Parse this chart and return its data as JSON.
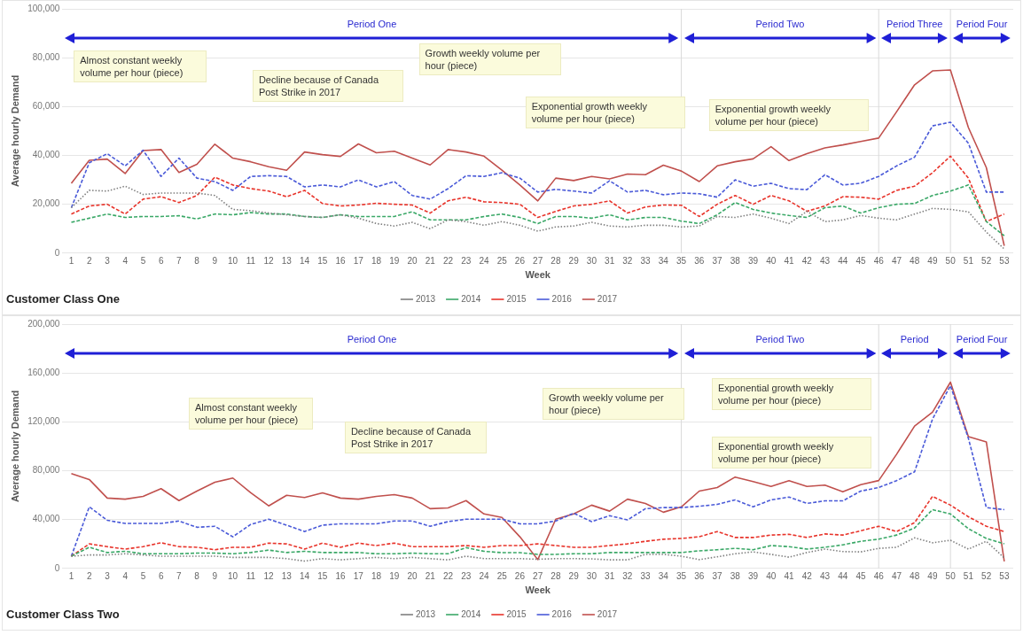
{
  "chart_data": [
    {
      "type": "line",
      "title": "Customer Class One",
      "xlabel": "Week",
      "ylabel": "Average hourly Demand",
      "x": [
        1,
        2,
        3,
        4,
        5,
        6,
        7,
        8,
        9,
        10,
        11,
        12,
        13,
        14,
        15,
        16,
        17,
        18,
        19,
        20,
        21,
        22,
        23,
        24,
        25,
        26,
        27,
        28,
        29,
        30,
        31,
        32,
        33,
        34,
        35,
        36,
        37,
        38,
        39,
        40,
        41,
        42,
        43,
        44,
        45,
        46,
        47,
        48,
        49,
        50,
        51,
        52,
        53
      ],
      "xlim": [
        0.5,
        53.5
      ],
      "xticks": [
        1,
        2,
        3,
        4,
        5,
        6,
        7,
        8,
        9,
        10,
        11,
        12,
        13,
        14,
        15,
        16,
        17,
        18,
        19,
        20,
        21,
        22,
        23,
        24,
        25,
        26,
        27,
        28,
        29,
        30,
        31,
        32,
        33,
        34,
        35,
        36,
        37,
        38,
        39,
        40,
        41,
        42,
        43,
        44,
        45,
        46,
        47,
        48,
        49,
        50,
        51,
        52,
        53
      ],
      "ylim": [
        0,
        100000
      ],
      "yticks": [
        {
          "value": 0,
          "label": "0"
        },
        {
          "value": 20000,
          "label": "20,000"
        },
        {
          "value": 40000,
          "label": "40,000"
        },
        {
          "value": 60000,
          "label": "60,000"
        },
        {
          "value": 80000,
          "label": "80,000"
        },
        {
          "value": 100000,
          "label": "100,000"
        }
      ],
      "grid": "y",
      "legend": "bottom",
      "marker": "none",
      "series": [
        {
          "name": "2013",
          "color": "#7f7f7f",
          "line_style": "dotted",
          "values": [
            18600,
            25700,
            25400,
            27400,
            24000,
            24600,
            24600,
            24600,
            23600,
            17900,
            17400,
            16400,
            15700,
            15000,
            14600,
            15700,
            14300,
            12100,
            11100,
            12600,
            10000,
            13600,
            12900,
            11400,
            12900,
            11400,
            9000,
            10700,
            11100,
            12600,
            11100,
            10700,
            11400,
            11400,
            10700,
            11100,
            15000,
            14600,
            16000,
            14300,
            12100,
            17100,
            12900,
            13600,
            15400,
            14300,
            13600,
            16000,
            18300,
            17900,
            16900,
            8600,
            1700
          ]
        },
        {
          "name": "2014",
          "color": "#3aa867",
          "line_style": "dashed",
          "values": [
            12600,
            14300,
            16000,
            14600,
            15000,
            15000,
            15300,
            14000,
            16000,
            15700,
            16600,
            16000,
            16000,
            15000,
            14600,
            15700,
            15000,
            15000,
            15000,
            16900,
            13600,
            13600,
            13600,
            15000,
            16000,
            14600,
            12100,
            15000,
            15000,
            14300,
            15700,
            13600,
            14600,
            14600,
            13100,
            12100,
            15700,
            20700,
            17900,
            16400,
            15400,
            14600,
            18600,
            19300,
            16400,
            18600,
            20000,
            20300,
            23600,
            25400,
            27900,
            12900,
            7100
          ]
        },
        {
          "name": "2015",
          "color": "#e8342b",
          "line_style": "dashed",
          "values": [
            16000,
            19300,
            20000,
            16000,
            22100,
            23100,
            20700,
            23600,
            31100,
            27900,
            26400,
            25400,
            23100,
            25700,
            20300,
            19300,
            19700,
            20400,
            20000,
            19700,
            16400,
            21400,
            22900,
            21000,
            20700,
            20000,
            14600,
            17100,
            19300,
            20000,
            21400,
            16400,
            18900,
            19700,
            19600,
            15000,
            20000,
            23600,
            20000,
            23600,
            21400,
            17100,
            19300,
            23100,
            22900,
            22100,
            25700,
            27400,
            32900,
            39700,
            30700,
            12900,
            16000
          ]
        },
        {
          "name": "2016",
          "color": "#4a5ad8",
          "line_style": "dashed",
          "values": [
            18600,
            37000,
            40700,
            35700,
            42100,
            31400,
            38900,
            30700,
            29300,
            25700,
            31400,
            31700,
            31400,
            27100,
            27900,
            27100,
            30000,
            27100,
            29300,
            23600,
            22100,
            26400,
            31700,
            31400,
            32900,
            30700,
            25000,
            26100,
            25400,
            24600,
            29600,
            25000,
            25700,
            23900,
            24600,
            24300,
            22900,
            30000,
            27400,
            28600,
            26400,
            26000,
            32100,
            27900,
            28600,
            31400,
            35700,
            39300,
            52100,
            53600,
            45000,
            25000,
            25000
          ]
        },
        {
          "name": "2017",
          "color": "#c0504d",
          "line_style": "solid",
          "values": [
            28600,
            38000,
            38500,
            32600,
            42000,
            42400,
            33000,
            36400,
            44600,
            38900,
            37400,
            35400,
            33900,
            41400,
            40300,
            39600,
            44700,
            41100,
            41700,
            38900,
            36100,
            42400,
            41400,
            39700,
            34000,
            27900,
            21400,
            30700,
            29700,
            31400,
            30400,
            32400,
            32100,
            36000,
            33600,
            29300,
            35700,
            37400,
            38600,
            43600,
            37900,
            40700,
            43100,
            44300,
            45700,
            47100,
            57900,
            68900,
            74600,
            75000,
            51400,
            35000,
            3000
          ]
        }
      ],
      "ref_lines": [
        {
          "axis": "x",
          "value": 35,
          "color": "#d9d9d9"
        },
        {
          "axis": "x",
          "value": 46,
          "color": "#d9d9d9"
        },
        {
          "axis": "x",
          "value": 50,
          "color": "#d9d9d9"
        }
      ],
      "annotations": [
        "Almost constant weekly volume per hour (piece)",
        "Decline because of Canada Post Strike in 2017",
        "Growth weekly volume per hour (piece)",
        "Exponential growth weekly volume per hour (piece)",
        "Exponential growth weekly volume per hour (piece)",
        "Period One",
        "Period Two",
        "Period Three",
        "Period Four"
      ]
    },
    {
      "type": "line",
      "title": "Customer Class Two",
      "xlabel": "Week",
      "ylabel": "Average hourly Demand",
      "x": [
        1,
        2,
        3,
        4,
        5,
        6,
        7,
        8,
        9,
        10,
        11,
        12,
        13,
        14,
        15,
        16,
        17,
        18,
        19,
        20,
        21,
        22,
        23,
        24,
        25,
        26,
        27,
        28,
        29,
        30,
        31,
        32,
        33,
        34,
        35,
        36,
        37,
        38,
        39,
        40,
        41,
        42,
        43,
        44,
        45,
        46,
        47,
        48,
        49,
        50,
        51,
        52,
        53
      ],
      "xlim": [
        0.5,
        53.5
      ],
      "xticks": [
        1,
        2,
        3,
        4,
        5,
        6,
        7,
        8,
        9,
        10,
        11,
        12,
        13,
        14,
        15,
        16,
        17,
        18,
        19,
        20,
        21,
        22,
        23,
        24,
        25,
        26,
        27,
        28,
        29,
        30,
        31,
        32,
        33,
        34,
        35,
        36,
        37,
        38,
        39,
        40,
        41,
        42,
        43,
        44,
        45,
        46,
        47,
        48,
        49,
        50,
        51,
        52,
        53
      ],
      "ylim": [
        0,
        200000
      ],
      "yticks": [
        {
          "value": 0,
          "label": "0"
        },
        {
          "value": 40000,
          "label": "40,000"
        },
        {
          "value": 80000,
          "label": "80,000"
        },
        {
          "value": 120000,
          "label": "120,000"
        },
        {
          "value": 160000,
          "label": "160,000"
        },
        {
          "value": 200000,
          "label": "200,000"
        }
      ],
      "grid": "y",
      "legend": "bottom",
      "marker": "none",
      "series": [
        {
          "name": "2013",
          "color": "#7f7f7f",
          "line_style": "dotted",
          "values": [
            10000,
            11000,
            11000,
            12000,
            11000,
            10000,
            10000,
            10000,
            10000,
            9000,
            9000,
            9000,
            8000,
            6000,
            8000,
            7000,
            8000,
            9000,
            8000,
            9000,
            8000,
            7000,
            10000,
            8000,
            8000,
            8000,
            7500,
            8000,
            8000,
            7800,
            7000,
            7000,
            11500,
            11500,
            10000,
            7200,
            9500,
            12000,
            13500,
            11500,
            9200,
            13000,
            15800,
            13800,
            13500,
            16400,
            17300,
            25000,
            21000,
            23000,
            15800,
            22200,
            8600
          ]
        },
        {
          "name": "2014",
          "color": "#3aa867",
          "line_style": "dashed",
          "values": [
            10000,
            17300,
            13000,
            14000,
            12000,
            12000,
            12000,
            12500,
            12500,
            12000,
            13000,
            15000,
            13000,
            14000,
            13000,
            13000,
            13000,
            12000,
            12000,
            12500,
            12000,
            12000,
            17000,
            14000,
            12900,
            12900,
            11500,
            11500,
            12000,
            12000,
            13000,
            13000,
            13000,
            13000,
            13000,
            14400,
            15300,
            16400,
            15300,
            18700,
            17800,
            15800,
            17300,
            19300,
            22200,
            23900,
            27300,
            33100,
            48100,
            44600,
            32500,
            24500,
            20100
          ]
        },
        {
          "name": "2015",
          "color": "#e8342b",
          "line_style": "dashed",
          "values": [
            10000,
            20100,
            17800,
            15800,
            17800,
            21000,
            17800,
            17300,
            15300,
            17300,
            17300,
            20700,
            20100,
            15800,
            20700,
            17300,
            20700,
            18700,
            20700,
            17800,
            17800,
            17800,
            18700,
            17300,
            18700,
            18700,
            20100,
            18700,
            17300,
            17300,
            18700,
            20100,
            22200,
            23900,
            24500,
            25900,
            30200,
            25300,
            25300,
            27300,
            27900,
            25300,
            28200,
            27300,
            30800,
            34500,
            30200,
            37400,
            59000,
            51800,
            42300,
            34500,
            30200
          ]
        },
        {
          "name": "2016",
          "color": "#4a5ad8",
          "line_style": "dashed",
          "values": [
            10000,
            50400,
            39400,
            36800,
            36800,
            36800,
            38800,
            33700,
            34500,
            25900,
            36000,
            40300,
            35400,
            30200,
            35400,
            36500,
            36500,
            36500,
            38800,
            38800,
            34500,
            38300,
            40300,
            40300,
            40300,
            36500,
            36500,
            38800,
            45200,
            38300,
            43200,
            39700,
            48900,
            49800,
            49800,
            50900,
            52400,
            56100,
            50400,
            56100,
            58400,
            53200,
            55300,
            55300,
            63300,
            66200,
            71900,
            79100,
            122300,
            149600,
            106500,
            49800,
            48100
          ]
        },
        {
          "name": "2017",
          "color": "#c0504d",
          "line_style": "solid",
          "values": [
            77700,
            72800,
            57600,
            56700,
            59000,
            65300,
            55500,
            63300,
            70500,
            74000,
            61900,
            51200,
            59900,
            58100,
            61900,
            57600,
            56700,
            59000,
            60400,
            57600,
            48900,
            49500,
            55500,
            44600,
            41700,
            25900,
            7200,
            40300,
            44600,
            51800,
            46900,
            56700,
            53200,
            46000,
            50400,
            63300,
            66200,
            74800,
            71100,
            67100,
            71900,
            67100,
            68200,
            62700,
            68500,
            71900,
            93500,
            116500,
            128000,
            152500,
            107900,
            103600,
            5800
          ]
        }
      ],
      "ref_lines": [
        {
          "axis": "x",
          "value": 35,
          "color": "#d9d9d9"
        },
        {
          "axis": "x",
          "value": 46,
          "color": "#d9d9d9"
        },
        {
          "axis": "x",
          "value": 50,
          "color": "#d9d9d9"
        }
      ],
      "annotations": [
        "Almost constant weekly volume per hour (piece)",
        "Decline because of Canada Post Strike in 2017",
        "Growth weekly volume per hour (piece)",
        "Exponential growth weekly volume per hour (piece)",
        "Exponential growth weekly volume per hour (piece)",
        "Period One",
        "Period Two",
        "Period",
        "Period Four"
      ]
    }
  ]
}
